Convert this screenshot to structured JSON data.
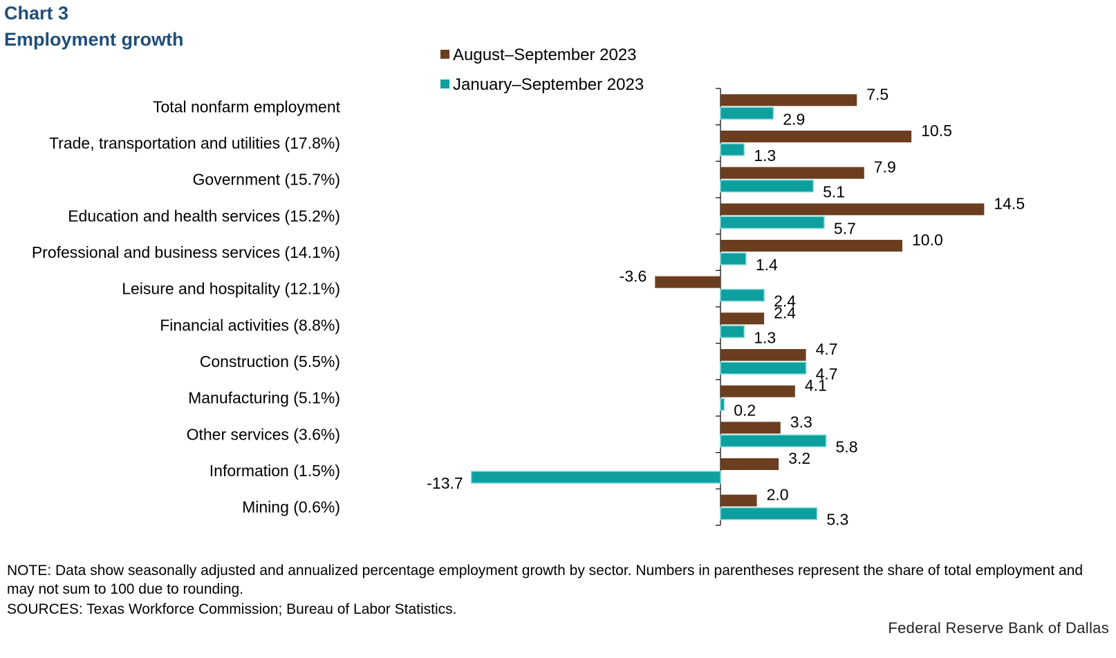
{
  "title_line1": "Chart 3",
  "title_line2": "Employment growth",
  "chart_data": {
    "type": "bar",
    "orientation": "horizontal",
    "categories": [
      "Total nonfarm employment",
      "Trade, transportation and utilities (17.8%)",
      "Government (15.7%)",
      "Education and health services (15.2%)",
      "Professional and business services (14.1%)",
      "Leisure and hospitality (12.1%)",
      "Financial activities (8.8%)",
      "Construction (5.5%)",
      "Manufacturing (5.1%)",
      "Other services (3.6%)",
      "Information (1.5%)",
      "Mining (0.6%)"
    ],
    "series": [
      {
        "name": "August–September 2023",
        "color": "#6b3e1f",
        "values": [
          7.5,
          10.5,
          7.9,
          14.5,
          10.0,
          -3.6,
          2.4,
          4.7,
          4.1,
          3.3,
          3.2,
          2.0
        ]
      },
      {
        "name": "January–September 2023",
        "color": "#0e9f9f",
        "values": [
          2.9,
          1.3,
          5.1,
          5.7,
          1.4,
          2.4,
          1.3,
          4.7,
          0.2,
          5.8,
          -13.7,
          5.3
        ]
      }
    ],
    "value_format": "one-decimal",
    "xlabel": "",
    "ylabel": "",
    "xlim": [
      -15,
      20
    ],
    "grid": false,
    "legend_position": "top"
  },
  "note": "NOTE: Data show seasonally adjusted and annualized percentage employment growth by sector. Numbers in parentheses represent the share of total employment and may not sum to 100 due to rounding.",
  "sources": "SOURCES: Texas Workforce Commission; Bureau of Labor Statistics.",
  "credit": "Federal Reserve Bank of Dallas"
}
